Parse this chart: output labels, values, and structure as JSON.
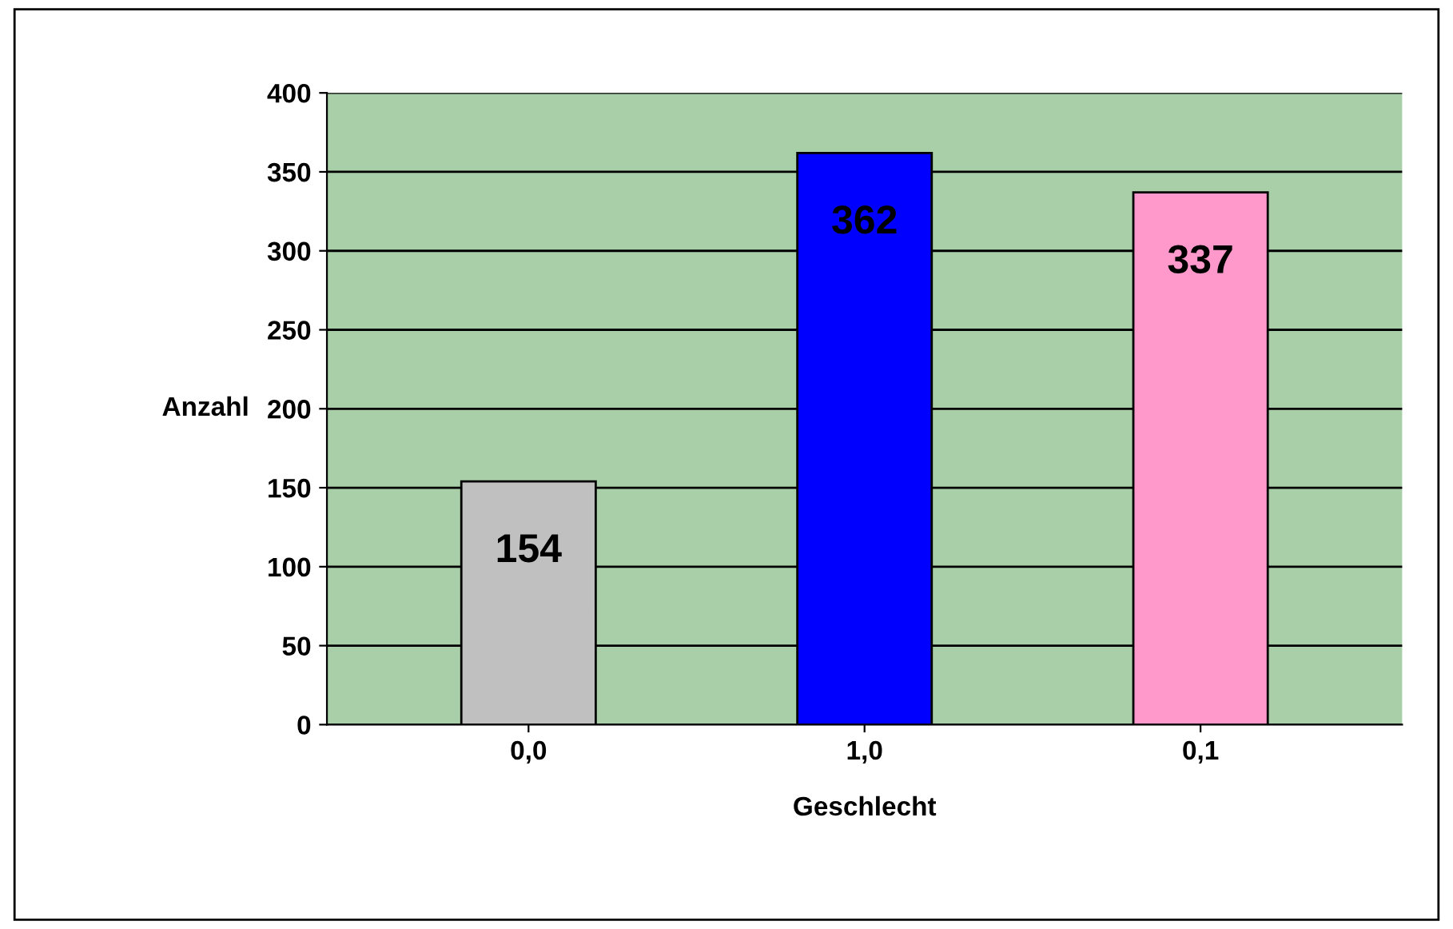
{
  "chart_data": {
    "type": "bar",
    "xlabel": "Geschlecht",
    "ylabel": "Anzahl",
    "categories": [
      "0,0",
      "1,0",
      "0,1"
    ],
    "values": [
      154,
      362,
      337
    ],
    "colors": [
      "#c0c0c0",
      "#0000ff",
      "#ff99cc"
    ],
    "ylim": [
      0,
      400
    ],
    "yticks": [
      0,
      50,
      100,
      150,
      200,
      250,
      300,
      350,
      400
    ],
    "grid": "y",
    "data_labels": true,
    "legend": false
  }
}
